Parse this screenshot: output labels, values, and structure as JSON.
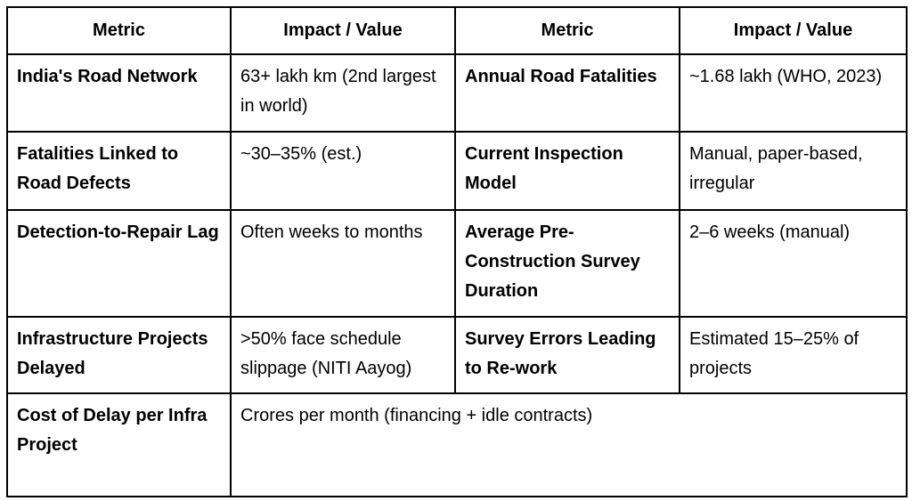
{
  "colors": {
    "border": "#000000",
    "text": "#000000",
    "background": "#ffffff"
  },
  "table": {
    "headers": {
      "metric_left": "Metric",
      "value_left": "Impact / Value",
      "metric_right": "Metric",
      "value_right": "Impact / Value"
    },
    "rows": [
      {
        "metric1": "India's Road Network",
        "value1": "63+ lakh km (2nd largest in world)",
        "metric2": "Annual Road Fatalities",
        "value2": "~1.68 lakh (WHO, 2023)"
      },
      {
        "metric1": "Fatalities Linked to Road Defects",
        "value1": "~30–35% (est.)",
        "metric2": "Current Inspection Model",
        "value2": "Manual, paper-based, irregular"
      },
      {
        "metric1": "Detection-to-Repair Lag",
        "value1": "Often weeks to months",
        "metric2": "Average Pre-Construction Survey Duration",
        "value2": "2–6 weeks (manual)"
      },
      {
        "metric1": "Infrastructure Projects Delayed",
        "value1": ">50% face schedule slippage (NITI Aayog)",
        "metric2": "Survey Errors Leading to Re-work",
        "value2": "Estimated 15–25% of projects"
      },
      {
        "metric1": "Cost of Delay per Infra Project",
        "value_span": "Crores per month (financing + idle contracts)"
      }
    ]
  }
}
